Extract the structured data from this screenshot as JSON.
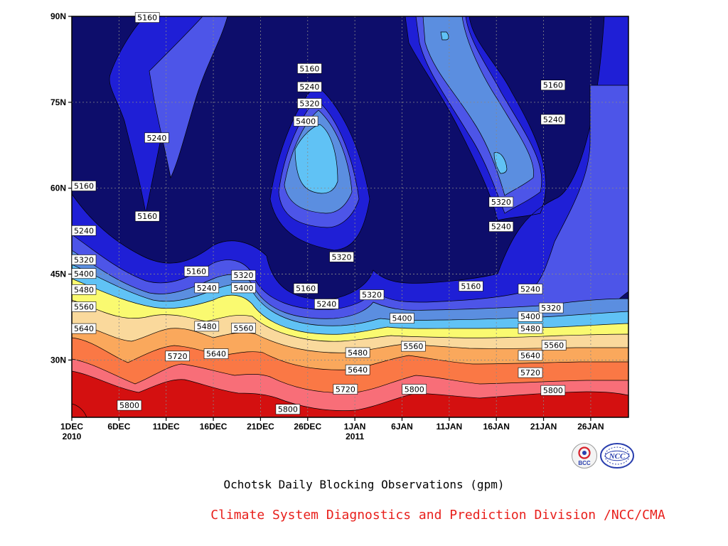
{
  "chart_data": {
    "type": "heatmap",
    "subtype": "filled-contour",
    "title": "",
    "xlabel": "",
    "ylabel": "",
    "x_ticks": [
      {
        "label": "1DEC",
        "sub": "2010"
      },
      {
        "label": "6DEC",
        "sub": ""
      },
      {
        "label": "11DEC",
        "sub": ""
      },
      {
        "label": "16DEC",
        "sub": ""
      },
      {
        "label": "21DEC",
        "sub": ""
      },
      {
        "label": "26DEC",
        "sub": ""
      },
      {
        "label": "1JAN",
        "sub": "2011"
      },
      {
        "label": "6JAN",
        "sub": ""
      },
      {
        "label": "11JAN",
        "sub": ""
      },
      {
        "label": "16JAN",
        "sub": ""
      },
      {
        "label": "21JAN",
        "sub": ""
      },
      {
        "label": "26JAN",
        "sub": ""
      }
    ],
    "y_ticks": [
      "30N",
      "45N",
      "60N",
      "75N",
      "90N"
    ],
    "xlim_days": [
      0,
      59
    ],
    "ylim_lat": [
      20,
      90
    ],
    "grid": true,
    "contour_interval_gpm": 80,
    "levels": [
      5160,
      5240,
      5320,
      5400,
      5480,
      5560,
      5640,
      5720,
      5800,
      5880
    ],
    "level_colors": [
      "#0d0d6b",
      "#1f1fd6",
      "#4d55e8",
      "#5b8ee0",
      "#60c2f5",
      "#fafa70",
      "#fad99c",
      "#faa85c",
      "#fa7845",
      "#f86e78",
      "#d41010"
    ],
    "contour_labels": [
      {
        "text": "5160",
        "day": 8,
        "lat": 89.8
      },
      {
        "text": "5240",
        "day": 9,
        "lat": 68.8
      },
      {
        "text": "5160",
        "day": 8,
        "lat": 55.1
      },
      {
        "text": "5160",
        "day": 0.1,
        "lat": 60.4
      },
      {
        "text": "5240",
        "day": 0.2,
        "lat": 52.6
      },
      {
        "text": "5320",
        "day": 0.3,
        "lat": 47.5
      },
      {
        "text": "5400",
        "day": 0.2,
        "lat": 45.1
      },
      {
        "text": "5480",
        "day": 0.2,
        "lat": 42.3
      },
      {
        "text": "5560",
        "day": 0.2,
        "lat": 39.3
      },
      {
        "text": "5640",
        "day": 0.2,
        "lat": 35.5
      },
      {
        "text": "5160",
        "day": 13.2,
        "lat": 45.5
      },
      {
        "text": "5240",
        "day": 14.3,
        "lat": 42.6
      },
      {
        "text": "5480",
        "day": 14.3,
        "lat": 35.9
      },
      {
        "text": "5720",
        "day": 11.2,
        "lat": 30.7
      },
      {
        "text": "5640",
        "day": 15.3,
        "lat": 31.1
      },
      {
        "text": "5800",
        "day": 6.1,
        "lat": 22.1
      },
      {
        "text": "5320",
        "day": 18.2,
        "lat": 44.8
      },
      {
        "text": "5400",
        "day": 18.2,
        "lat": 42.6
      },
      {
        "text": "5560",
        "day": 18.2,
        "lat": 35.6
      },
      {
        "text": "5160",
        "day": 25.2,
        "lat": 80.9
      },
      {
        "text": "5240",
        "day": 25.2,
        "lat": 77.7
      },
      {
        "text": "5320",
        "day": 25.2,
        "lat": 74.8
      },
      {
        "text": "5400",
        "day": 24.8,
        "lat": 71.7
      },
      {
        "text": "5320",
        "day": 28.6,
        "lat": 48.0
      },
      {
        "text": "5160",
        "day": 24.8,
        "lat": 42.5
      },
      {
        "text": "5240",
        "day": 27.0,
        "lat": 39.8
      },
      {
        "text": "5320",
        "day": 31.8,
        "lat": 41.4
      },
      {
        "text": "5480",
        "day": 30.3,
        "lat": 31.3
      },
      {
        "text": "5640",
        "day": 30.3,
        "lat": 28.3
      },
      {
        "text": "5720",
        "day": 29.0,
        "lat": 24.9
      },
      {
        "text": "5800",
        "day": 22.9,
        "lat": 21.4
      },
      {
        "text": "5400",
        "day": 35.0,
        "lat": 37.3
      },
      {
        "text": "5560",
        "day": 36.2,
        "lat": 32.4
      },
      {
        "text": "5800",
        "day": 36.3,
        "lat": 24.9
      },
      {
        "text": "5160",
        "day": 42.3,
        "lat": 42.9
      },
      {
        "text": "5320",
        "day": 45.5,
        "lat": 57.6
      },
      {
        "text": "5240",
        "day": 45.5,
        "lat": 53.3
      },
      {
        "text": "5240",
        "day": 48.6,
        "lat": 42.4
      },
      {
        "text": "5400",
        "day": 48.6,
        "lat": 37.6
      },
      {
        "text": "5480",
        "day": 48.6,
        "lat": 35.5
      },
      {
        "text": "5320",
        "day": 50.8,
        "lat": 39.1
      },
      {
        "text": "5560",
        "day": 51.1,
        "lat": 32.6
      },
      {
        "text": "5640",
        "day": 48.6,
        "lat": 30.8
      },
      {
        "text": "5720",
        "day": 48.6,
        "lat": 27.8
      },
      {
        "text": "5160",
        "day": 51.0,
        "lat": 78.0
      },
      {
        "text": "5240",
        "day": 51.0,
        "lat": 72.0
      },
      {
        "text": "5800",
        "day": 51.0,
        "lat": 24.7
      }
    ]
  },
  "caption": "Ochotsk Daily Blocking Observations (gpm)",
  "credit": "Climate System Diagnostics and Prediction Division /NCC/CMA",
  "logos": [
    {
      "name": "bcc-logo",
      "text": "BCC",
      "color": "#d8202a"
    },
    {
      "name": "ncc-logo",
      "text": "NCC",
      "color": "#2a3fae"
    }
  ]
}
